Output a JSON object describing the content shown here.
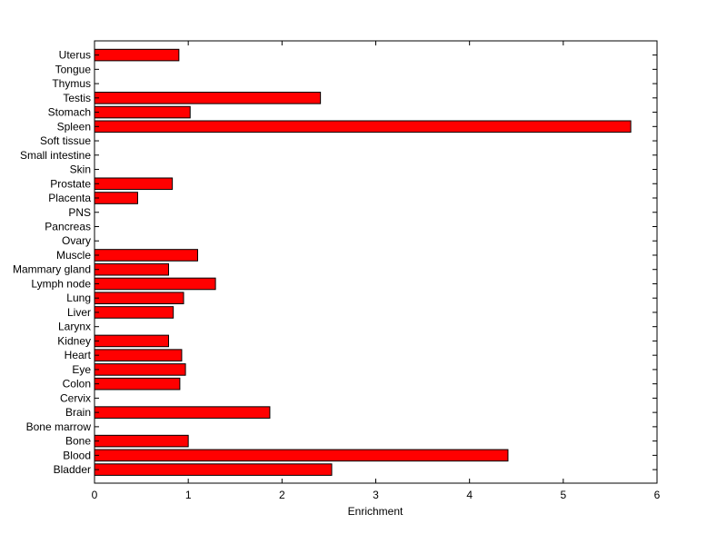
{
  "chart_data": {
    "type": "bar",
    "orientation": "horizontal",
    "xlabel": "Enrichment",
    "ylabel": "",
    "title": "",
    "xlim": [
      0,
      6
    ],
    "xticks": [
      0,
      1,
      2,
      3,
      4,
      5,
      6
    ],
    "bar_color": "#ff0000",
    "grid": false,
    "categories": [
      "Bladder",
      "Blood",
      "Bone",
      "Bone marrow",
      "Brain",
      "Cervix",
      "Colon",
      "Eye",
      "Heart",
      "Kidney",
      "Larynx",
      "Liver",
      "Lung",
      "Lymph node",
      "Mammary gland",
      "Muscle",
      "Ovary",
      "Pancreas",
      "PNS",
      "Placenta",
      "Prostate",
      "Skin",
      "Small intestine",
      "Soft tissue",
      "Spleen",
      "Stomach",
      "Testis",
      "Thymus",
      "Tongue",
      "Uterus"
    ],
    "values": [
      2.53,
      4.41,
      1.0,
      0,
      1.87,
      0,
      0.91,
      0.97,
      0.93,
      0.79,
      0,
      0.84,
      0.95,
      1.29,
      0.79,
      1.1,
      0,
      0,
      0,
      0.46,
      0.83,
      0,
      0,
      0,
      5.72,
      1.02,
      2.41,
      0,
      0,
      0.9
    ]
  }
}
